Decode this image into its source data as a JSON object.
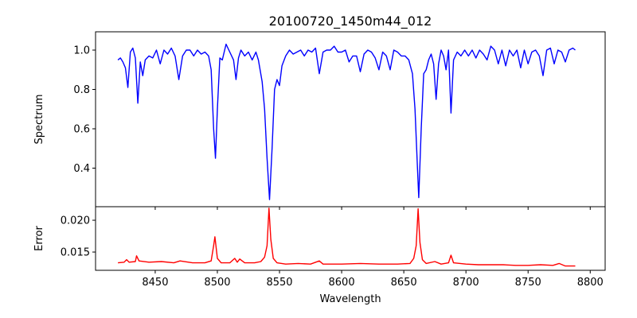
{
  "chart_data": [
    {
      "type": "line",
      "panel": "top",
      "title": "20100720_1450m44_012",
      "ylabel": "Spectrum",
      "xlabel": "",
      "xlim": [
        8402,
        8812
      ],
      "ylim": [
        0.204,
        1.093
      ],
      "yticks": [
        0.4,
        0.6,
        0.8,
        1.0
      ],
      "ytick_labels": [
        "0.4",
        "0.6",
        "0.8",
        "1.0"
      ],
      "xticks": [
        8450,
        8500,
        8550,
        8600,
        8650,
        8700,
        8750,
        8800
      ],
      "color": "#0000ff",
      "series": [
        {
          "name": "Spectrum",
          "x": [
            8420,
            8422,
            8424,
            8426,
            8428,
            8430,
            8432,
            8434,
            8436,
            8438,
            8440,
            8442,
            8445,
            8448,
            8451,
            8454,
            8457,
            8460,
            8463,
            8466,
            8469,
            8472,
            8475,
            8478,
            8481,
            8484,
            8487,
            8490,
            8493,
            8495,
            8497,
            8498.5,
            8500,
            8502,
            8504,
            8507,
            8510,
            8513,
            8515,
            8517,
            8519,
            8522,
            8525,
            8528,
            8531,
            8533,
            8536,
            8538,
            8540,
            8542,
            8544,
            8546,
            8548,
            8550,
            8552,
            8555,
            8558,
            8561,
            8564,
            8567,
            8570,
            8573,
            8576,
            8579,
            8582,
            8585,
            8588,
            8591,
            8594,
            8597,
            8600,
            8603,
            8606,
            8609,
            8612,
            8615,
            8618,
            8621,
            8624,
            8627,
            8630,
            8633,
            8636,
            8639,
            8642,
            8645,
            8648,
            8651,
            8654,
            8657,
            8659,
            8661,
            8662,
            8664,
            8666,
            8668,
            8670,
            8672,
            8674,
            8676,
            8678,
            8680,
            8682,
            8684,
            8686,
            8688,
            8690,
            8693,
            8696,
            8699,
            8702,
            8705,
            8708,
            8711,
            8714,
            8717,
            8720,
            8723,
            8726,
            8729,
            8732,
            8735,
            8738,
            8741,
            8744,
            8747,
            8750,
            8753,
            8756,
            8759,
            8762,
            8765,
            8768,
            8771,
            8774,
            8777,
            8780,
            8783,
            8786,
            8788
          ],
          "y": [
            0.95,
            0.96,
            0.94,
            0.91,
            0.81,
            0.99,
            1.01,
            0.96,
            0.73,
            0.94,
            0.87,
            0.95,
            0.97,
            0.96,
            1.0,
            0.93,
            1.0,
            0.98,
            1.01,
            0.97,
            0.85,
            0.97,
            1.0,
            1.0,
            0.97,
            1.0,
            0.98,
            0.99,
            0.97,
            0.9,
            0.6,
            0.45,
            0.7,
            0.96,
            0.95,
            1.03,
            0.99,
            0.95,
            0.85,
            0.96,
            1.0,
            0.97,
            0.99,
            0.95,
            0.99,
            0.95,
            0.84,
            0.7,
            0.45,
            0.24,
            0.5,
            0.8,
            0.85,
            0.82,
            0.92,
            0.97,
            1.0,
            0.98,
            0.99,
            1.0,
            0.97,
            1.0,
            0.99,
            1.01,
            0.88,
            0.99,
            1.0,
            1.0,
            1.02,
            0.99,
            0.99,
            1.0,
            0.94,
            0.97,
            0.97,
            0.89,
            0.98,
            1.0,
            0.99,
            0.96,
            0.9,
            0.99,
            0.97,
            0.9,
            1.0,
            0.99,
            0.97,
            0.97,
            0.95,
            0.88,
            0.7,
            0.4,
            0.25,
            0.6,
            0.88,
            0.9,
            0.95,
            0.98,
            0.93,
            0.75,
            0.93,
            1.0,
            0.97,
            0.9,
            1.0,
            0.68,
            0.95,
            0.99,
            0.97,
            1.0,
            0.97,
            1.0,
            0.96,
            1.0,
            0.98,
            0.95,
            1.02,
            1.0,
            0.93,
            1.0,
            0.92,
            1.0,
            0.97,
            1.0,
            0.91,
            1.0,
            0.93,
            0.99,
            1.0,
            0.97,
            0.87,
            1.0,
            1.01,
            0.93,
            1.0,
            0.99,
            0.94,
            1.0,
            1.01,
            1.0
          ]
        }
      ]
    },
    {
      "type": "line",
      "panel": "bottom",
      "ylabel": "Error",
      "xlabel": "Wavelength",
      "xlim": [
        8402,
        8812
      ],
      "ylim": [
        0.01213,
        0.02213
      ],
      "yticks": [
        0.015,
        0.02
      ],
      "ytick_labels": [
        "0.015",
        "0.020"
      ],
      "xticks": [
        8450,
        8500,
        8550,
        8600,
        8650,
        8700,
        8750,
        8800
      ],
      "xtick_labels": [
        "8450",
        "8500",
        "8550",
        "8600",
        "8650",
        "8700",
        "8750",
        "8800"
      ],
      "color": "#ff0000",
      "series": [
        {
          "name": "Error",
          "x": [
            8420,
            8425,
            8427,
            8429,
            8434,
            8435,
            8437,
            8445,
            8455,
            8465,
            8470,
            8480,
            8490,
            8495,
            8497,
            8498,
            8500,
            8503,
            8510,
            8514,
            8516,
            8518,
            8522,
            8530,
            8535,
            8538,
            8540,
            8541.5,
            8543,
            8545,
            8548,
            8555,
            8565,
            8575,
            8582,
            8585,
            8600,
            8615,
            8630,
            8645,
            8655,
            8658,
            8660,
            8661.5,
            8663,
            8665,
            8668,
            8675,
            8680,
            8686,
            8688,
            8690,
            8700,
            8710,
            8720,
            8730,
            8740,
            8750,
            8760,
            8770,
            8775,
            8780,
            8788
          ],
          "y": [
            0.0133,
            0.0134,
            0.0138,
            0.0134,
            0.0135,
            0.0144,
            0.0136,
            0.0134,
            0.0135,
            0.0133,
            0.0136,
            0.0133,
            0.0133,
            0.0136,
            0.016,
            0.0174,
            0.014,
            0.0133,
            0.0133,
            0.014,
            0.0134,
            0.0139,
            0.0133,
            0.0133,
            0.0135,
            0.0142,
            0.016,
            0.0219,
            0.017,
            0.014,
            0.0133,
            0.0131,
            0.0132,
            0.0131,
            0.0136,
            0.0131,
            0.0131,
            0.0132,
            0.0131,
            0.0131,
            0.0132,
            0.014,
            0.016,
            0.0218,
            0.0165,
            0.0138,
            0.0132,
            0.0135,
            0.0131,
            0.0133,
            0.0145,
            0.0133,
            0.0131,
            0.013,
            0.013,
            0.013,
            0.0129,
            0.0129,
            0.013,
            0.0129,
            0.0132,
            0.0128,
            0.0128
          ]
        }
      ]
    }
  ]
}
